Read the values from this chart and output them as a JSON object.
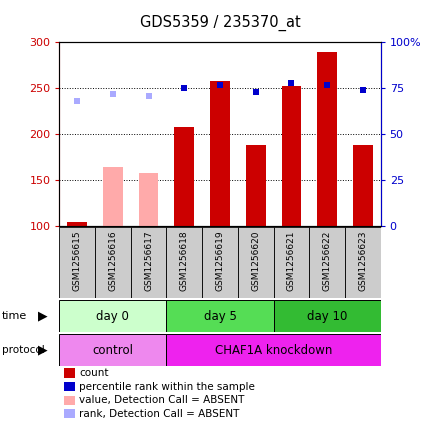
{
  "title": "GDS5359 / 235370_at",
  "samples": [
    "GSM1256615",
    "GSM1256616",
    "GSM1256617",
    "GSM1256618",
    "GSM1256619",
    "GSM1256620",
    "GSM1256621",
    "GSM1256622",
    "GSM1256623"
  ],
  "bar_values": [
    105,
    165,
    158,
    208,
    258,
    188,
    252,
    290,
    188
  ],
  "bar_colors": [
    "#cc0000",
    "#ffaaaa",
    "#ffaaaa",
    "#cc0000",
    "#cc0000",
    "#cc0000",
    "#cc0000",
    "#cc0000",
    "#cc0000"
  ],
  "rank_values": [
    68,
    72,
    71,
    75,
    77,
    73,
    78,
    77,
    74
  ],
  "rank_colors": [
    "#aaaaff",
    "#aaaaff",
    "#aaaaff",
    "#0000cc",
    "#0000cc",
    "#0000cc",
    "#0000cc",
    "#0000cc",
    "#0000cc"
  ],
  "ylim_left": [
    100,
    300
  ],
  "ylim_right": [
    0,
    100
  ],
  "left_yticks": [
    100,
    150,
    200,
    250,
    300
  ],
  "right_yticks": [
    0,
    25,
    50,
    75,
    100
  ],
  "right_yticklabels": [
    "0",
    "25",
    "50",
    "75",
    "100%"
  ],
  "time_groups": [
    {
      "label": "day 0",
      "start": 0,
      "end": 3,
      "color": "#ccffcc"
    },
    {
      "label": "day 5",
      "start": 3,
      "end": 6,
      "color": "#55dd55"
    },
    {
      "label": "day 10",
      "start": 6,
      "end": 9,
      "color": "#33bb33"
    }
  ],
  "protocol_groups": [
    {
      "label": "control",
      "start": 0,
      "end": 3,
      "color": "#ee88ee"
    },
    {
      "label": "CHAF1A knockdown",
      "start": 3,
      "end": 9,
      "color": "#ee22ee"
    }
  ],
  "legend_items": [
    {
      "label": "count",
      "color": "#cc0000"
    },
    {
      "label": "percentile rank within the sample",
      "color": "#0000cc"
    },
    {
      "label": "value, Detection Call = ABSENT",
      "color": "#ffaaaa"
    },
    {
      "label": "rank, Detection Call = ABSENT",
      "color": "#aaaaff"
    }
  ],
  "chart_bg": "#ffffff",
  "bar_width": 0.55,
  "xtick_box_color": "#cccccc",
  "grid_lines": [
    150,
    200,
    250
  ]
}
